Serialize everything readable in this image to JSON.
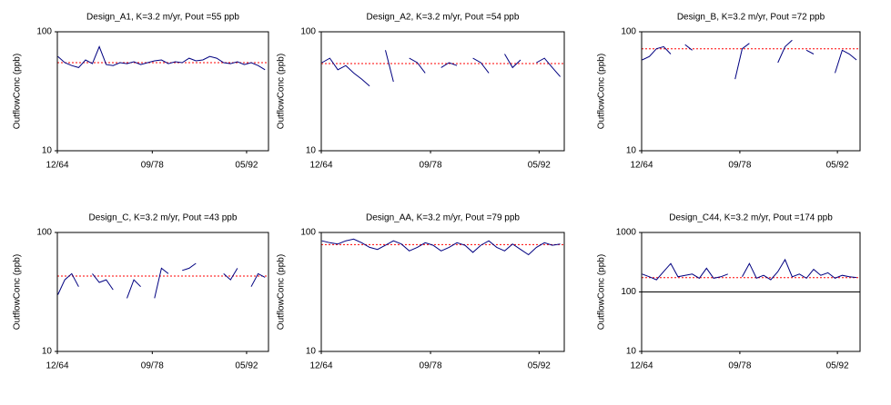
{
  "chart_data": [
    {
      "type": "line",
      "title": "Design_A1, K=3.2 m/yr,  Pout =55 ppb",
      "y_label": "OutflowConc (ppb)",
      "x": [
        1965,
        1966,
        1967,
        1968,
        1969,
        1970,
        1971,
        1972,
        1973,
        1974,
        1975,
        1976,
        1977,
        1978,
        1979,
        1980,
        1981,
        1982,
        1983,
        1984,
        1985,
        1986,
        1987,
        1988,
        1989,
        1990,
        1991,
        1992,
        1993,
        1994,
        1995
      ],
      "xlim": [
        1964.92,
        1995.5
      ],
      "xticks": [
        {
          "value": 1964.92,
          "label": "12/64"
        },
        {
          "value": 1978.67,
          "label": "09/78"
        },
        {
          "value": 1992.33,
          "label": "05/92"
        }
      ],
      "ylim": [
        10,
        100
      ],
      "yticks": [
        10,
        100
      ],
      "log_y": true,
      "series": [
        {
          "color": "#000080",
          "values": [
            62,
            55,
            52,
            50,
            58,
            54,
            75,
            53,
            52,
            55,
            54,
            56,
            53,
            55,
            57,
            58,
            54,
            56,
            55,
            60,
            57,
            58,
            62,
            60,
            55,
            54,
            56,
            53,
            55,
            52,
            48
          ]
        }
      ],
      "ref_line": {
        "value": 55,
        "color": "#ff0000"
      }
    },
    {
      "type": "line",
      "title": "Design_A2, K=3.2 m/yr,  Pout =54 ppb",
      "y_label": "OutflowConc (ppb)",
      "x": [
        1965,
        1966,
        1967,
        1968,
        1969,
        1970,
        1971,
        1972,
        1973,
        1974,
        1975,
        1976,
        1977,
        1978,
        1979,
        1980,
        1981,
        1982,
        1983,
        1984,
        1985,
        1986,
        1987,
        1988,
        1989,
        1990,
        1991,
        1992,
        1993,
        1994,
        1995
      ],
      "xlim": [
        1964.92,
        1995.5
      ],
      "xticks": [
        {
          "value": 1964.92,
          "label": "12/64"
        },
        {
          "value": 1978.67,
          "label": "09/78"
        },
        {
          "value": 1992.33,
          "label": "05/92"
        }
      ],
      "ylim": [
        10,
        100
      ],
      "yticks": [
        10,
        100
      ],
      "log_y": true,
      "series": [
        {
          "color": "#000080",
          "values": [
            55,
            60,
            48,
            52,
            45,
            40,
            35,
            null,
            70,
            38,
            null,
            60,
            55,
            45,
            null,
            50,
            55,
            52,
            null,
            60,
            55,
            45,
            null,
            65,
            50,
            58,
            null,
            55,
            60,
            50,
            42
          ]
        }
      ],
      "ref_line": {
        "value": 54,
        "color": "#ff0000"
      }
    },
    {
      "type": "line",
      "title": "Design_B, K=3.2 m/yr,  Pout =72 ppb",
      "y_label": "OutflowConc (ppb)",
      "x": [
        1965,
        1966,
        1967,
        1968,
        1969,
        1970,
        1971,
        1972,
        1973,
        1974,
        1975,
        1976,
        1977,
        1978,
        1979,
        1980,
        1981,
        1982,
        1983,
        1984,
        1985,
        1986,
        1987,
        1988,
        1989,
        1990,
        1991,
        1992,
        1993,
        1994,
        1995
      ],
      "xlim": [
        1964.92,
        1995.5
      ],
      "xticks": [
        {
          "value": 1964.92,
          "label": "12/64"
        },
        {
          "value": 1978.67,
          "label": "09/78"
        },
        {
          "value": 1992.33,
          "label": "05/92"
        }
      ],
      "ylim": [
        10,
        100
      ],
      "yticks": [
        10,
        100
      ],
      "log_y": true,
      "series": [
        {
          "color": "#000080",
          "values": [
            58,
            62,
            72,
            75,
            65,
            null,
            78,
            70,
            null,
            null,
            null,
            null,
            null,
            40,
            72,
            80,
            null,
            null,
            null,
            55,
            75,
            85,
            null,
            70,
            65,
            null,
            null,
            45,
            70,
            65,
            58
          ]
        }
      ],
      "ref_line": {
        "value": 72,
        "color": "#ff0000"
      }
    },
    {
      "type": "line",
      "title": "Design_C, K=3.2 m/yr,  Pout =43 ppb",
      "y_label": "OutflowConc (ppb)",
      "x": [
        1965,
        1966,
        1967,
        1968,
        1969,
        1970,
        1971,
        1972,
        1973,
        1974,
        1975,
        1976,
        1977,
        1978,
        1979,
        1980,
        1981,
        1982,
        1983,
        1984,
        1985,
        1986,
        1987,
        1988,
        1989,
        1990,
        1991,
        1992,
        1993,
        1994,
        1995
      ],
      "xlim": [
        1964.92,
        1995.5
      ],
      "xticks": [
        {
          "value": 1964.92,
          "label": "12/64"
        },
        {
          "value": 1978.67,
          "label": "09/78"
        },
        {
          "value": 1992.33,
          "label": "05/92"
        }
      ],
      "ylim": [
        10,
        100
      ],
      "yticks": [
        10,
        100
      ],
      "log_y": true,
      "series": [
        {
          "color": "#000080",
          "values": [
            30,
            40,
            45,
            35,
            null,
            45,
            38,
            40,
            33,
            null,
            28,
            40,
            35,
            null,
            28,
            50,
            45,
            null,
            48,
            50,
            55,
            null,
            null,
            null,
            45,
            40,
            50,
            null,
            35,
            45,
            42
          ]
        }
      ],
      "ref_line": {
        "value": 43,
        "color": "#ff0000"
      }
    },
    {
      "type": "line",
      "title": "Design_AA, K=3.2 m/yr,  Pout =79 ppb",
      "y_label": "OutflowConc (ppb)",
      "x": [
        1965,
        1966,
        1967,
        1968,
        1969,
        1970,
        1971,
        1972,
        1973,
        1974,
        1975,
        1976,
        1977,
        1978,
        1979,
        1980,
        1981,
        1982,
        1983,
        1984,
        1985,
        1986,
        1987,
        1988,
        1989,
        1990,
        1991,
        1992,
        1993,
        1994,
        1995
      ],
      "xlim": [
        1964.92,
        1995.5
      ],
      "xticks": [
        {
          "value": 1964.92,
          "label": "12/64"
        },
        {
          "value": 1978.67,
          "label": "09/78"
        },
        {
          "value": 1992.33,
          "label": "05/92"
        }
      ],
      "ylim": [
        10,
        100
      ],
      "yticks": [
        10,
        100
      ],
      "log_y": true,
      "series": [
        {
          "color": "#000080",
          "values": [
            85,
            82,
            80,
            85,
            88,
            82,
            75,
            72,
            78,
            85,
            80,
            70,
            75,
            82,
            78,
            70,
            75,
            82,
            78,
            68,
            78,
            85,
            75,
            70,
            80,
            72,
            65,
            75,
            82,
            78,
            80
          ]
        }
      ],
      "ref_line": {
        "value": 79,
        "color": "#ff0000"
      }
    },
    {
      "type": "line",
      "title": "Design_C44, K=3.2 m/yr,  Pout =174 ppb",
      "y_label": "OutflowConc (ppb)",
      "x": [
        1965,
        1966,
        1967,
        1968,
        1969,
        1970,
        1971,
        1972,
        1973,
        1974,
        1975,
        1976,
        1977,
        1978,
        1979,
        1980,
        1981,
        1982,
        1983,
        1984,
        1985,
        1986,
        1987,
        1988,
        1989,
        1990,
        1991,
        1992,
        1993,
        1994,
        1995
      ],
      "xlim": [
        1964.92,
        1995.5
      ],
      "xticks": [
        {
          "value": 1964.92,
          "label": "12/64"
        },
        {
          "value": 1978.67,
          "label": "09/78"
        },
        {
          "value": 1992.33,
          "label": "05/92"
        }
      ],
      "ylim": [
        10,
        1000
      ],
      "yticks": [
        10,
        100,
        1000
      ],
      "log_y": true,
      "series": [
        {
          "color": "#000080",
          "values": [
            200,
            180,
            160,
            220,
            300,
            180,
            190,
            200,
            170,
            250,
            170,
            180,
            200,
            null,
            180,
            300,
            170,
            190,
            160,
            220,
            350,
            180,
            200,
            170,
            240,
            190,
            210,
            170,
            190,
            180,
            175
          ]
        }
      ],
      "ref_line": {
        "value": 174,
        "color": "#ff0000"
      },
      "baseline": {
        "value": 100,
        "color": "#000000"
      }
    }
  ]
}
